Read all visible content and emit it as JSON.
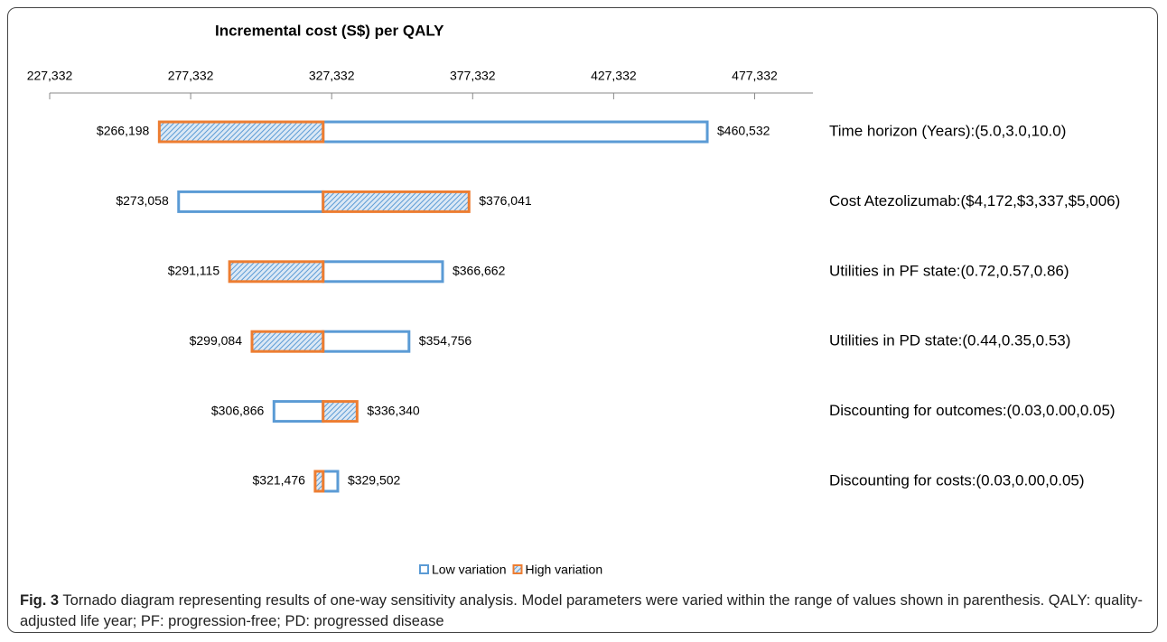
{
  "chart_data": {
    "type": "tornado",
    "title": "Incremental cost (S$) per QALY",
    "categories": [
      "Time horizon (Years):(5.0,3.0,10.0)",
      "Cost Atezolizumab:($4,172,$3,337,$5,006)",
      "Utilities in PF state:(0.72,0.57,0.86)",
      "Utilities in PD state:(0.44,0.35,0.53)",
      "Discounting for outcomes:(0.03,0.00,0.05)",
      "Discounting for costs:(0.03,0.00,0.05)"
    ],
    "base": 324300,
    "series": [
      {
        "name": "Low variation",
        "color": "#5b9bd5",
        "values": [
          460532,
          273058,
          366662,
          354756,
          306866,
          329502
        ],
        "value_labels": [
          "$460,532",
          "$273,058",
          "$366,662",
          "$354,756",
          "$306,866",
          "$329,502"
        ]
      },
      {
        "name": "High variation",
        "color": "#ed7d31",
        "values": [
          266198,
          376041,
          291115,
          299084,
          336340,
          321476
        ],
        "value_labels": [
          "$266,198",
          "$376,041",
          "$291,115",
          "$299,084",
          "$336,340",
          "$321,476"
        ]
      }
    ],
    "xlim": [
      227332,
      498000
    ],
    "xticks": [
      {
        "value": 227332,
        "label": "227,332"
      },
      {
        "value": 277332,
        "label": "277,332"
      },
      {
        "value": 327332,
        "label": "327,332"
      },
      {
        "value": 377332,
        "label": "377,332"
      },
      {
        "value": 427332,
        "label": "427,332"
      },
      {
        "value": 477332,
        "label": "477,332"
      }
    ],
    "legend": "bottom"
  },
  "caption": {
    "label": "Fig. 3",
    "text": "Tornado diagram representing results of one-way sensitivity analysis. Model parameters were varied within the range of values shown in parenthesis. QALY: quality-adjusted life year; PF: progression-free; PD: progressed disease"
  }
}
